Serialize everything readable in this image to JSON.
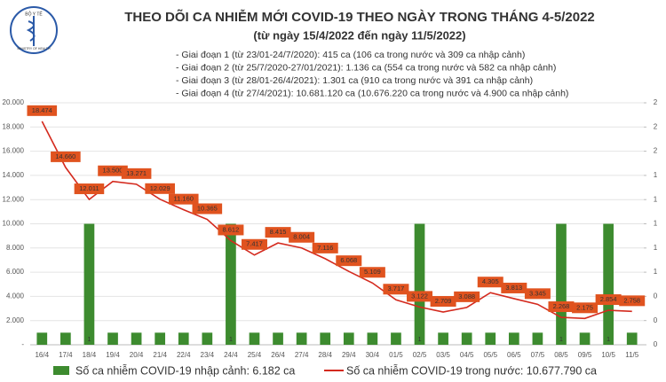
{
  "logo": {
    "top": "BỘ Y TẾ",
    "bottom": "MINISTRY OF HEALTH"
  },
  "chart_data": {
    "type": "bar+line",
    "title": "THEO DÕI CA NHIỄM MỚI COVID-19 THEO NGÀY TRONG THÁNG 4-5/2022",
    "subtitle": "(từ ngày 15/4/2022 đến ngày 11/5/2022)",
    "annotations": [
      "- Giai đoạn 1 (từ 23/01-24/7/2020): 415 ca (106 ca trong nước và 309 ca nhập cảnh)",
      "- Giai đoạn 2 (từ 25/7/2020-27/01/2021): 1.136 ca (554 ca trong nước và 582 ca nhập cảnh)",
      "- Giai đoạn 3 (từ 28/01-26/4/2021): 1.301 ca (910 ca trong nước và 391 ca nhập cảnh)",
      "- Giai đoạn 4 (từ 27/4/2021): 10.681.120 ca (10.676.220 ca trong nước và 4.900 ca nhập cảnh)"
    ],
    "categories": [
      "16/4",
      "17/4",
      "18/4",
      "19/4",
      "20/4",
      "21/4",
      "22/4",
      "23/4",
      "24/4",
      "25/4",
      "26/4",
      "27/4",
      "28/4",
      "29/4",
      "30/4",
      "01/5",
      "02/5",
      "03/5",
      "04/5",
      "05/5",
      "06/5",
      "07/5",
      "08/5",
      "09/5",
      "10/5",
      "11/5"
    ],
    "series": [
      {
        "name": "Số ca nhiễm COVID-19 nhập cảnh: 6.182 ca",
        "kind": "bar",
        "axis": "y2",
        "color": "#3d8b2f",
        "values": [
          0.1,
          0.1,
          1,
          0.1,
          0.1,
          0.1,
          0.1,
          0.1,
          1,
          0.1,
          0.1,
          0.1,
          0.1,
          0.1,
          0.1,
          0.1,
          1,
          0.1,
          0.1,
          0.1,
          0.1,
          0.1,
          1,
          0.1,
          1,
          0.1
        ],
        "value_labels": [
          null,
          null,
          "1",
          null,
          null,
          null,
          null,
          null,
          "1",
          null,
          null,
          null,
          null,
          null,
          null,
          null,
          "1",
          null,
          null,
          null,
          null,
          null,
          "1",
          null,
          "1",
          null
        ]
      },
      {
        "name": "Số ca nhiễm COVID-19 trong nước: 10.677.790 ca",
        "kind": "line",
        "axis": "y",
        "color": "#d42a1e",
        "values": [
          18474,
          14660,
          12011,
          13500,
          13271,
          12029,
          11160,
          10365,
          8612,
          7417,
          8415,
          8004,
          7116,
          6068,
          5109,
          3717,
          3122,
          2709,
          3088,
          4305,
          3813,
          3345,
          2268,
          2175,
          2854,
          2758
        ],
        "value_labels": [
          "18.474",
          "14.660",
          "12.011",
          "13.500",
          "13.271",
          "12.029",
          "11.160",
          "10.365",
          "8.612",
          "7.417",
          "8.415",
          "8.004",
          "7.116",
          "6.068",
          "5.109",
          "3.717",
          "3.122",
          "2.709",
          "3.088",
          "4.305",
          "3.813",
          "3.345",
          "2.268",
          "2.175",
          "2.854",
          "2.758"
        ]
      }
    ],
    "ylim": [
      0,
      20000
    ],
    "yticks": [
      {
        "value": 0,
        "label": "-"
      },
      {
        "value": 2000,
        "label": "2.000"
      },
      {
        "value": 4000,
        "label": "4.000"
      },
      {
        "value": 6000,
        "label": "6.000"
      },
      {
        "value": 8000,
        "label": "8.000"
      },
      {
        "value": 10000,
        "label": "10.000"
      },
      {
        "value": 12000,
        "label": "12.000"
      },
      {
        "value": 14000,
        "label": "14.000"
      },
      {
        "value": 16000,
        "label": "16.000"
      },
      {
        "value": 18000,
        "label": "18.000"
      },
      {
        "value": 20000,
        "label": "20.000"
      }
    ],
    "y2lim": [
      0,
      2
    ],
    "y2ticks": [
      {
        "value": 0,
        "label": "0"
      },
      {
        "value": 0.2,
        "label": "0"
      },
      {
        "value": 0.4,
        "label": "0"
      },
      {
        "value": 0.6,
        "label": "1"
      },
      {
        "value": 0.8,
        "label": "1"
      },
      {
        "value": 1,
        "label": "1"
      },
      {
        "value": 1.2,
        "label": "1"
      },
      {
        "value": 1.4,
        "label": "1"
      },
      {
        "value": 1.6,
        "label": "2"
      },
      {
        "value": 1.8,
        "label": "2"
      },
      {
        "value": 2,
        "label": "2"
      }
    ],
    "grid": true
  }
}
